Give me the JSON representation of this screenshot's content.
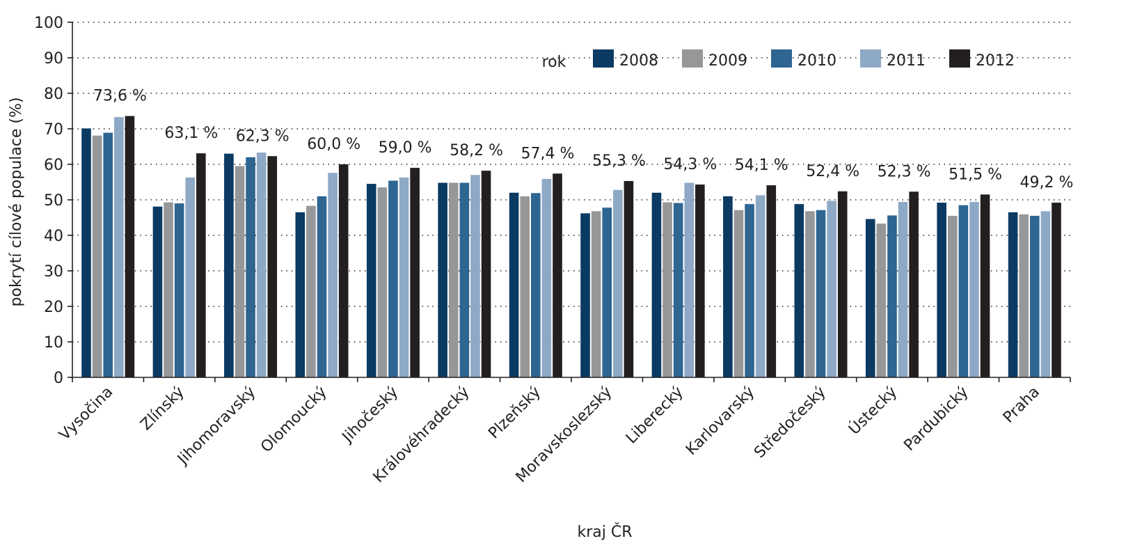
{
  "chart_data": {
    "type": "bar",
    "xlabel": "kraj ČR",
    "ylabel": "pokrytí cílové populace (%)",
    "ylim": [
      0,
      100
    ],
    "yticks": [
      0,
      10,
      20,
      30,
      40,
      50,
      60,
      70,
      80,
      90,
      100
    ],
    "grid": true,
    "legend_title": "rok",
    "legend_position": "top-right",
    "categories": [
      "Vysočina",
      "Zlínský",
      "Jihomoravský",
      "Olomoucký",
      "Jihočeský",
      "Královéhradecký",
      "Plzeňský",
      "Moravskoslezský",
      "Liberecký",
      "Karlovarský",
      "Středočeský",
      "Ústecký",
      "Pardubický",
      "Praha"
    ],
    "series": [
      {
        "name": "2008",
        "color": "#0b3a63",
        "values": [
          70.1,
          48.1,
          63.0,
          46.5,
          54.5,
          54.8,
          52.0,
          46.2,
          52.0,
          51.0,
          48.8,
          44.6,
          49.2,
          46.5
        ]
      },
      {
        "name": "2009",
        "color": "#959799",
        "values": [
          68.1,
          49.3,
          59.5,
          48.3,
          53.5,
          54.8,
          51.0,
          46.8,
          49.3,
          47.1,
          46.8,
          43.3,
          45.5,
          45.9
        ]
      },
      {
        "name": "2010",
        "color": "#2e6591",
        "values": [
          68.9,
          49.0,
          62.0,
          51.0,
          55.4,
          54.8,
          51.9,
          47.8,
          49.1,
          48.8,
          47.1,
          45.6,
          48.5,
          45.5
        ]
      },
      {
        "name": "2011",
        "color": "#8ea9c6",
        "values": [
          73.3,
          56.3,
          63.3,
          57.6,
          56.3,
          57.0,
          55.9,
          52.8,
          54.8,
          51.3,
          49.7,
          49.4,
          49.4,
          46.8
        ]
      },
      {
        "name": "2012",
        "color": "#231f20",
        "values": [
          73.6,
          63.1,
          62.3,
          60.0,
          59.0,
          58.2,
          57.4,
          55.3,
          54.3,
          54.1,
          52.4,
          52.3,
          51.5,
          49.2
        ]
      }
    ],
    "data_labels": [
      "73,6 %",
      "63,1 %",
      "62,3 %",
      "60,0 %",
      "59,0 %",
      "58,2 %",
      "57,4 %",
      "55,3 %",
      "54,3 %",
      "54,1 %",
      "52,4 %",
      "52,3 %",
      "51,5 %",
      "49,2 %"
    ]
  }
}
